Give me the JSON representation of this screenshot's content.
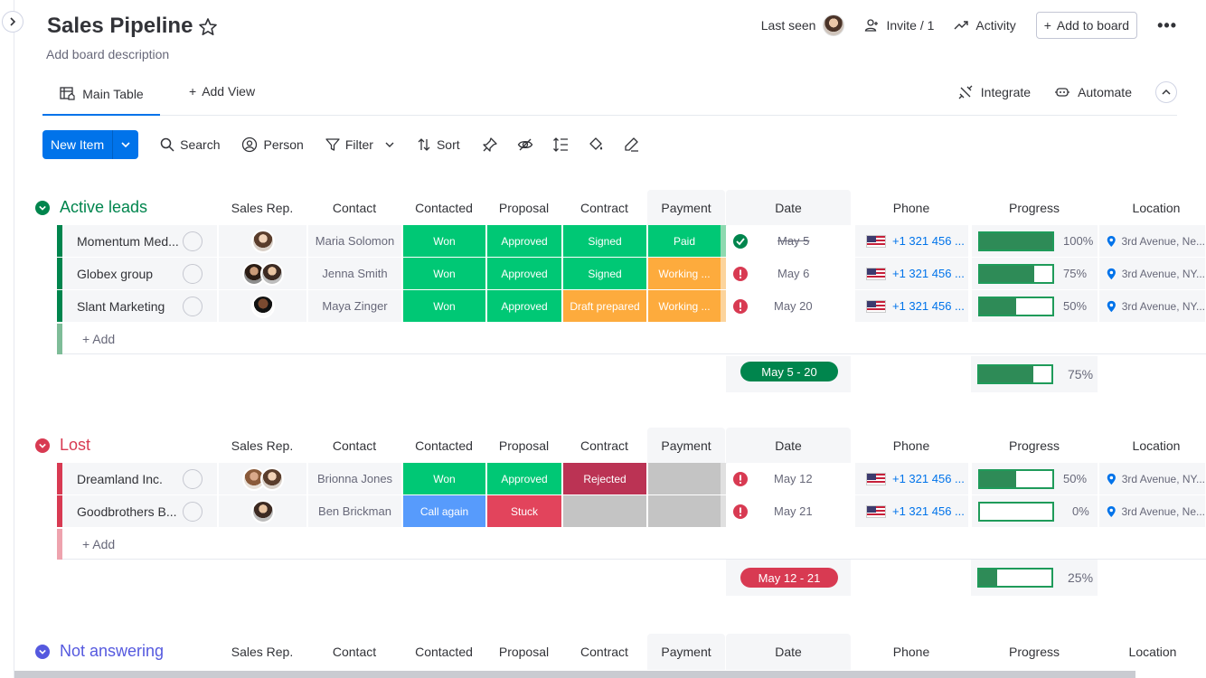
{
  "board": {
    "title": "Sales Pipeline",
    "description": "Add board description"
  },
  "header": {
    "last_seen": "Last seen",
    "invite": "Invite / 1",
    "activity": "Activity",
    "add_to_board": "Add to board",
    "more": "•••"
  },
  "views": {
    "main_table": "Main Table",
    "add_view": "Add View",
    "integrate": "Integrate",
    "automate": "Automate"
  },
  "toolbar": {
    "new_item": "New Item",
    "search": "Search",
    "person": "Person",
    "filter": "Filter",
    "sort": "Sort"
  },
  "columns": [
    "Sales Rep.",
    "Contact",
    "Contacted",
    "Proposal",
    "Contract",
    "Payment",
    "Date",
    "Phone",
    "Progress",
    "Location"
  ],
  "groups": [
    {
      "title": "Active leads",
      "color": "#00854d",
      "title_color": "#00854d",
      "add_label": "+ Add",
      "summary_date": "May 5 - 20",
      "summary_progress": "75%",
      "summary_progress_value": 0.75,
      "rows": [
        {
          "name": "Momentum Med...",
          "contact": "Maria Solomon",
          "contacted": "Won",
          "proposal": "Approved",
          "contract": "Signed",
          "payment": "Paid",
          "date": "May 5",
          "phone": "+1 321 456 ...",
          "progress": "100%",
          "progress_value": 1.0,
          "location": "3rd Avenue, Ne..."
        },
        {
          "name": "Globex group",
          "contact": "Jenna Smith",
          "contacted": "Won",
          "proposal": "Approved",
          "contract": "Signed",
          "payment": "Working ...",
          "date": "May 6",
          "phone": "+1 321 456 ...",
          "progress": "75%",
          "progress_value": 0.75,
          "location": "3rd Avenue, NY..."
        },
        {
          "name": "Slant Marketing",
          "contact": "Maya Zinger",
          "contacted": "Won",
          "proposal": "Approved",
          "contract": "Draft prepared",
          "payment": "Working ...",
          "date": "May 20",
          "phone": "+1 321 456 ...",
          "progress": "50%",
          "progress_value": 0.5,
          "location": "3rd Avenue, NY..."
        }
      ]
    },
    {
      "title": "Lost",
      "color": "#d83a52",
      "title_color": "#d83a52",
      "add_label": "+ Add",
      "summary_date": "May 12 - 21",
      "summary_progress": "25%",
      "summary_progress_value": 0.25,
      "rows": [
        {
          "name": "Dreamland Inc.",
          "contact": "Brionna Jones",
          "contacted": "Won",
          "proposal": "Approved",
          "contract": "Rejected",
          "payment": "",
          "date": "May 12",
          "phone": "+1 321 456 ...",
          "progress": "50%",
          "progress_value": 0.5,
          "location": "3rd Avenue, NY..."
        },
        {
          "name": "Goodbrothers B...",
          "contact": "Ben Brickman",
          "contacted": "Call again",
          "proposal": "Stuck",
          "contract": "",
          "payment": "",
          "date": "May 21",
          "phone": "+1 321 456 ...",
          "progress": "0%",
          "progress_value": 0.0,
          "location": "3rd Avenue, Ne..."
        }
      ]
    },
    {
      "title": "Not answering",
      "title_color": "#5559df",
      "color": "#5559df"
    }
  ],
  "status_colors": {
    "Won": "#00c875",
    "Approved": "#00c875",
    "Signed": "#00c875",
    "Paid": "#00c875",
    "Working ...": "#fdab3d",
    "Draft prepared": "#fdab3d",
    "Rejected": "#bb3354",
    "Call again": "#579bfc",
    "Stuck": "#e2445c",
    "empty": "#c4c4c4"
  }
}
